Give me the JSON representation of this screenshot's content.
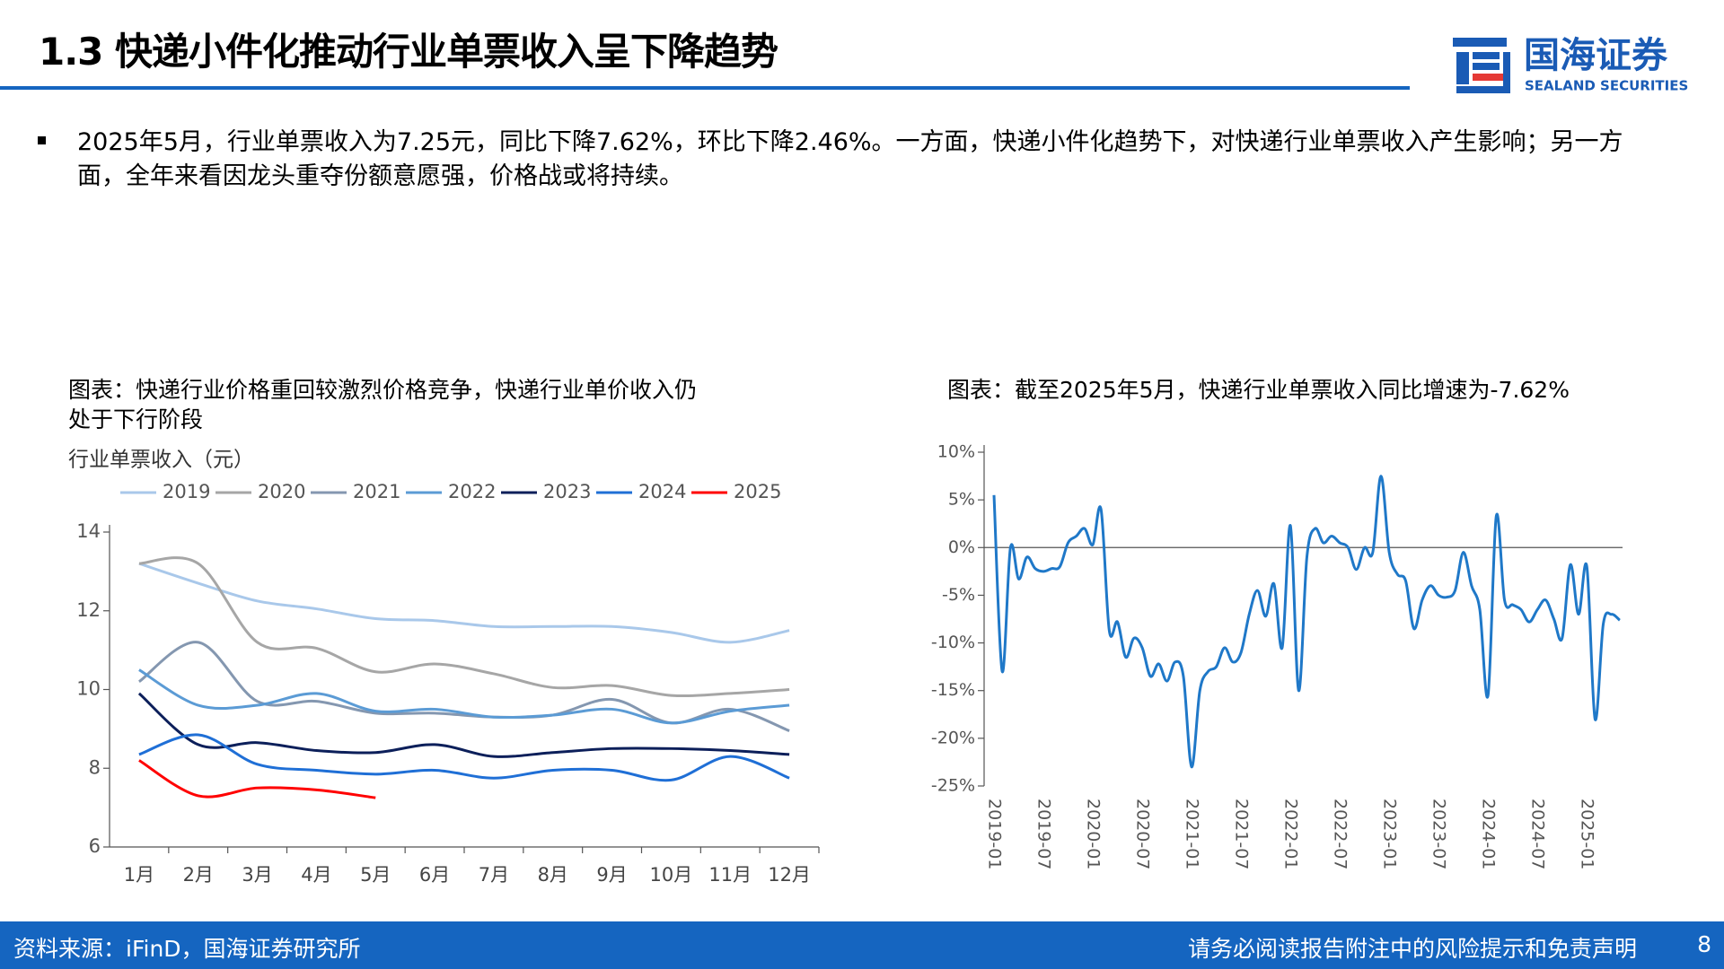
{
  "header": {
    "title": "1.3 快递小件化推动行业单票收入呈下降趋势",
    "logo": {
      "name": "国海证券",
      "english": "SEALAND SECURITIES"
    }
  },
  "bullet": "2025年5月，行业单票收入为7.25元，同比下降7.62%，环比下降2.46%。一方面，快递小件化趋势下，对快递行业单票收入产生影响；另一方面，全年来看因龙头重夺份额意愿强，价格战或将持续。",
  "footer": {
    "source": "资料来源：iFinD，国海证券研究所",
    "disclaimer": "请务必阅读报告附注中的风险提示和免责声明",
    "page": "8"
  },
  "chart_data": [
    {
      "type": "line",
      "title": "图表：快递行业价格重回较激烈价格竞争，快递行业单价收入仍处于下行阶段",
      "y_label": "行业单票收入（元）",
      "legend": "top",
      "categories": [
        "1月",
        "2月",
        "3月",
        "4月",
        "5月",
        "6月",
        "7月",
        "8月",
        "9月",
        "10月",
        "11月",
        "12月"
      ],
      "ylim": [
        6,
        14
      ],
      "yticks": [
        6,
        8,
        10,
        12,
        14
      ],
      "series": [
        {
          "name": "2019",
          "color": "#a9c8ea",
          "values": [
            13.2,
            12.7,
            12.25,
            12.05,
            11.8,
            11.75,
            11.6,
            11.6,
            11.6,
            11.45,
            11.2,
            11.5
          ]
        },
        {
          "name": "2020",
          "color": "#a6a6a6",
          "values": [
            13.2,
            13.2,
            11.2,
            11.05,
            10.45,
            10.65,
            10.4,
            10.05,
            10.1,
            9.85,
            9.9,
            10.0
          ]
        },
        {
          "name": "2021",
          "color": "#8497b0",
          "values": [
            10.2,
            11.2,
            9.7,
            9.7,
            9.4,
            9.4,
            9.3,
            9.35,
            9.75,
            9.15,
            9.5,
            8.95
          ]
        },
        {
          "name": "2022",
          "color": "#5b9bd5",
          "values": [
            10.5,
            9.6,
            9.6,
            9.9,
            9.45,
            9.5,
            9.3,
            9.35,
            9.5,
            9.15,
            9.45,
            9.6
          ]
        },
        {
          "name": "2023",
          "color": "#0c1f5a",
          "values": [
            9.9,
            8.6,
            8.65,
            8.45,
            8.4,
            8.6,
            8.3,
            8.4,
            8.5,
            8.5,
            8.45,
            8.35
          ]
        },
        {
          "name": "2024",
          "color": "#1f6fd6",
          "values": [
            8.35,
            8.85,
            8.1,
            7.95,
            7.85,
            7.95,
            7.75,
            7.95,
            7.95,
            7.7,
            8.3,
            7.75
          ]
        },
        {
          "name": "2025",
          "color": "#ff0000",
          "values": [
            8.2,
            7.3,
            7.5,
            7.45,
            7.25,
            null,
            null,
            null,
            null,
            null,
            null,
            null
          ]
        }
      ]
    },
    {
      "type": "line",
      "title": "图表：截至2025年5月，快递行业单票收入同比增速为-7.62%",
      "categories": [
        "2019-01",
        null,
        null,
        null,
        null,
        null,
        "2019-07",
        null,
        null,
        null,
        null,
        null,
        "2020-01",
        null,
        null,
        null,
        null,
        null,
        "2020-07",
        null,
        null,
        null,
        null,
        null,
        "2021-01",
        null,
        null,
        null,
        null,
        null,
        "2021-07",
        null,
        null,
        null,
        null,
        null,
        "2022-01",
        null,
        null,
        null,
        null,
        null,
        "2022-07",
        null,
        null,
        null,
        null,
        null,
        "2023-01",
        null,
        null,
        null,
        null,
        null,
        "2023-07",
        null,
        null,
        null,
        null,
        null,
        "2024-01",
        null,
        null,
        null,
        null,
        null,
        "2024-07",
        null,
        null,
        null,
        null,
        null,
        "2025-01",
        null,
        null,
        null,
        null
      ],
      "ylim": [
        -25,
        10
      ],
      "yticks": [
        {
          "value": -25,
          "label": "-25%"
        },
        {
          "value": -20,
          "label": "-20%"
        },
        {
          "value": -15,
          "label": "-15%"
        },
        {
          "value": -10,
          "label": "-10%"
        },
        {
          "value": -5,
          "label": "-5%"
        },
        {
          "value": 0,
          "label": "0%"
        },
        {
          "value": 5,
          "label": "5%"
        },
        {
          "value": 10,
          "label": "10%"
        }
      ],
      "series": [
        {
          "color": "#1f78c8",
          "values": [
            5.5,
            -13,
            0,
            -3.3,
            -1,
            -2.2,
            -2.5,
            -2.2,
            -2,
            0.5,
            1.2,
            2,
            0.3,
            4,
            -8.7,
            -7.8,
            -11.5,
            -9.5,
            -10.5,
            -13.5,
            -12.2,
            -14,
            -12,
            -13.5,
            -23,
            -15,
            -13,
            -12.5,
            -10.5,
            -12,
            -11,
            -7,
            -4.5,
            -7.2,
            -3.8,
            -10.5,
            2.3,
            -15,
            -1,
            2,
            0.5,
            1.2,
            0.5,
            0,
            -2.3,
            0,
            -0.5,
            7.5,
            -0.5,
            -2.8,
            -3.5,
            -8.5,
            -5.5,
            -4,
            -5,
            -5.2,
            -4.5,
            -0.5,
            -4,
            -6.5,
            -15.5,
            3.3,
            -5.5,
            -6,
            -6.5,
            -7.8,
            -6.5,
            -5.5,
            -7.5,
            -9.5,
            -1.8,
            -7,
            -2,
            -18,
            -8,
            -7,
            -7.62
          ]
        }
      ]
    }
  ]
}
